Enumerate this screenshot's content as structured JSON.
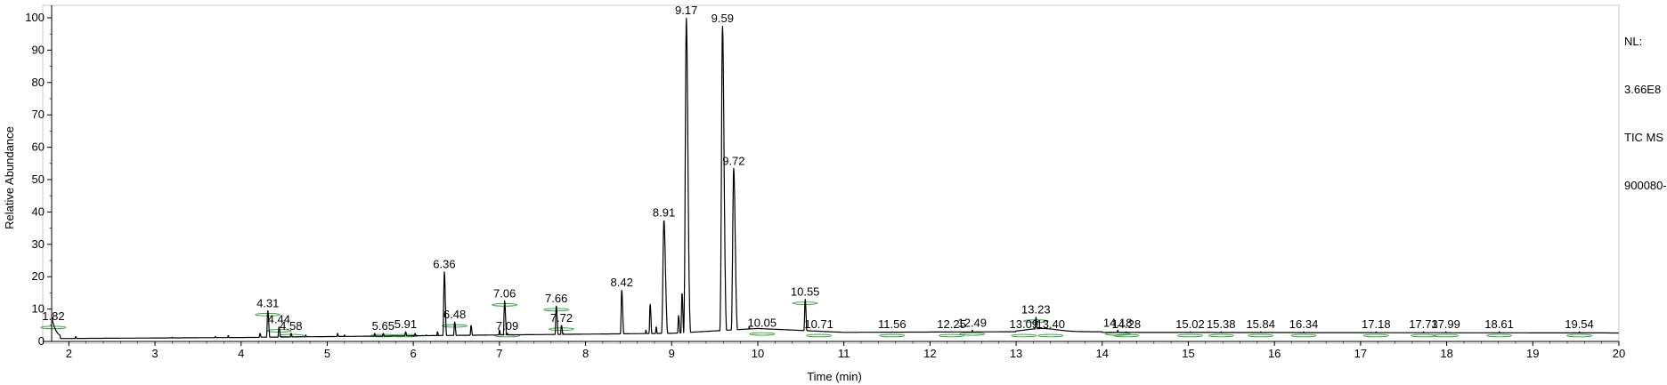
{
  "info": {
    "nl_label": "NL:",
    "nl_value": "3.66E8",
    "scan_filter": "TIC  MS",
    "file_name": "900080-"
  },
  "chart_data": {
    "type": "line",
    "title": "",
    "xlabel": "Time (min)",
    "ylabel": "Relative Abundance",
    "xlim": [
      1.8,
      20
    ],
    "ylim": [
      0,
      100
    ],
    "xticks": [
      2,
      3,
      4,
      5,
      6,
      7,
      8,
      9,
      10,
      11,
      12,
      13,
      14,
      15,
      16,
      17,
      18,
      19,
      20
    ],
    "yticks": [
      0,
      10,
      20,
      30,
      40,
      50,
      60,
      70,
      80,
      90,
      100
    ],
    "grid": false,
    "line_color": "#000000",
    "annotation_color": "#2e9e3e",
    "labeled_peaks": [
      {
        "label": "1.82",
        "x": 1.82,
        "y": 5.5
      },
      {
        "label": "4.31",
        "x": 4.31,
        "y": 9.5
      },
      {
        "label": "4.44",
        "x": 4.44,
        "y": 4.5
      },
      {
        "label": "4.58",
        "x": 4.58,
        "y": 2.5
      },
      {
        "label": "5.65",
        "x": 5.65,
        "y": 2.5
      },
      {
        "label": "5.91",
        "x": 5.91,
        "y": 3.0
      },
      {
        "label": "6.36",
        "x": 6.36,
        "y": 21.5
      },
      {
        "label": "6.48",
        "x": 6.48,
        "y": 6.0
      },
      {
        "label": "7.06",
        "x": 7.06,
        "y": 12.5
      },
      {
        "label": "7.09",
        "x": 7.09,
        "y": 2.5
      },
      {
        "label": "7.66",
        "x": 7.66,
        "y": 11.0
      },
      {
        "label": "7.72",
        "x": 7.72,
        "y": 5.0
      },
      {
        "label": "8.42",
        "x": 8.42,
        "y": 16.0
      },
      {
        "label": "8.91",
        "x": 8.91,
        "y": 37.5
      },
      {
        "label": "9.17",
        "x": 9.17,
        "y": 100
      },
      {
        "label": "9.59",
        "x": 9.59,
        "y": 97.5
      },
      {
        "label": "9.72",
        "x": 9.72,
        "y": 53.5
      },
      {
        "label": "10.05",
        "x": 10.05,
        "y": 3.5
      },
      {
        "label": "10.55",
        "x": 10.55,
        "y": 13.0
      },
      {
        "label": "10.71",
        "x": 10.71,
        "y": 3.0
      },
      {
        "label": "11.56",
        "x": 11.56,
        "y": 3.0
      },
      {
        "label": "12.25",
        "x": 12.25,
        "y": 3.0
      },
      {
        "label": "12.49",
        "x": 12.49,
        "y": 3.5
      },
      {
        "label": "13.09",
        "x": 13.09,
        "y": 3.0
      },
      {
        "label": "13.23",
        "x": 13.23,
        "y": 7.5
      },
      {
        "label": "13.40",
        "x": 13.4,
        "y": 3.0
      },
      {
        "label": "14.18",
        "x": 14.18,
        "y": 3.5
      },
      {
        "label": "14.28",
        "x": 14.28,
        "y": 3.0
      },
      {
        "label": "15.02",
        "x": 15.02,
        "y": 3.0
      },
      {
        "label": "15.38",
        "x": 15.38,
        "y": 3.0
      },
      {
        "label": "15.84",
        "x": 15.84,
        "y": 3.0
      },
      {
        "label": "16.34",
        "x": 16.34,
        "y": 3.0
      },
      {
        "label": "17.18",
        "x": 17.18,
        "y": 3.0
      },
      {
        "label": "17.73",
        "x": 17.73,
        "y": 3.0
      },
      {
        "label": "17.99",
        "x": 17.99,
        "y": 3.0
      },
      {
        "label": "18.61",
        "x": 18.61,
        "y": 3.0
      },
      {
        "label": "19.54",
        "x": 19.54,
        "y": 3.0
      }
    ],
    "minor_peaks": [
      {
        "x": 2.08,
        "y": 1.5
      },
      {
        "x": 3.2,
        "y": 1.3
      },
      {
        "x": 3.7,
        "y": 1.5
      },
      {
        "x": 3.85,
        "y": 1.8
      },
      {
        "x": 4.22,
        "y": 2.5
      },
      {
        "x": 4.75,
        "y": 2.0
      },
      {
        "x": 5.12,
        "y": 2.5
      },
      {
        "x": 5.2,
        "y": 2.0
      },
      {
        "x": 5.55,
        "y": 2.5
      },
      {
        "x": 6.02,
        "y": 2.5
      },
      {
        "x": 6.15,
        "y": 2.0
      },
      {
        "x": 6.28,
        "y": 3.0
      },
      {
        "x": 6.67,
        "y": 5.0
      },
      {
        "x": 7.0,
        "y": 3.5
      },
      {
        "x": 7.74,
        "y": 2.5
      },
      {
        "x": 8.7,
        "y": 3.5
      },
      {
        "x": 8.75,
        "y": 11.5
      },
      {
        "x": 8.82,
        "y": 4.5
      },
      {
        "x": 9.08,
        "y": 8.0
      },
      {
        "x": 9.12,
        "y": 15.0
      },
      {
        "x": 9.9,
        "y": 4.5
      },
      {
        "x": 10.95,
        "y": 3.0
      }
    ]
  }
}
